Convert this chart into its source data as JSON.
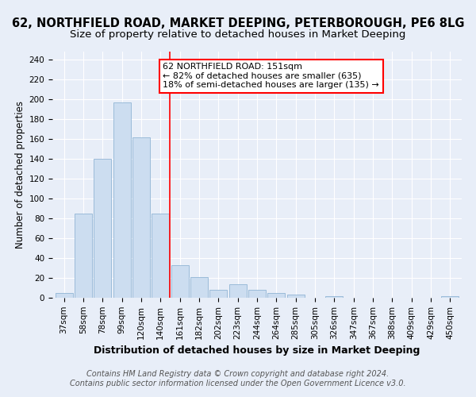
{
  "title": "62, NORTHFIELD ROAD, MARKET DEEPING, PETERBOROUGH, PE6 8LG",
  "subtitle": "Size of property relative to detached houses in Market Deeping",
  "xlabel": "Distribution of detached houses by size in Market Deeping",
  "ylabel": "Number of detached properties",
  "footnote1": "Contains HM Land Registry data © Crown copyright and database right 2024.",
  "footnote2": "Contains public sector information licensed under the Open Government Licence v3.0.",
  "categories": [
    "37sqm",
    "58sqm",
    "78sqm",
    "99sqm",
    "120sqm",
    "140sqm",
    "161sqm",
    "182sqm",
    "202sqm",
    "223sqm",
    "244sqm",
    "264sqm",
    "285sqm",
    "305sqm",
    "326sqm",
    "347sqm",
    "367sqm",
    "388sqm",
    "409sqm",
    "429sqm",
    "450sqm"
  ],
  "values": [
    5,
    85,
    140,
    197,
    162,
    85,
    33,
    21,
    8,
    14,
    8,
    5,
    3,
    0,
    2,
    0,
    0,
    0,
    0,
    0,
    2
  ],
  "bar_color": "#ccddf0",
  "bar_edge_color": "#91b4d5",
  "vline_x": 5.5,
  "vline_color": "red",
  "annotation_text": "62 NORTHFIELD ROAD: 151sqm\n← 82% of detached houses are smaller (635)\n18% of semi-detached houses are larger (135) →",
  "annotation_box_facecolor": "white",
  "annotation_box_edgecolor": "red",
  "ylim": [
    0,
    248
  ],
  "yticks": [
    0,
    20,
    40,
    60,
    80,
    100,
    120,
    140,
    160,
    180,
    200,
    220,
    240
  ],
  "bg_color": "#e8eef8",
  "grid_color": "white",
  "title_fontsize": 10.5,
  "subtitle_fontsize": 9.5,
  "xlabel_fontsize": 9,
  "ylabel_fontsize": 8.5,
  "tick_fontsize": 7.5,
  "annotation_fontsize": 8,
  "footnote_fontsize": 7
}
